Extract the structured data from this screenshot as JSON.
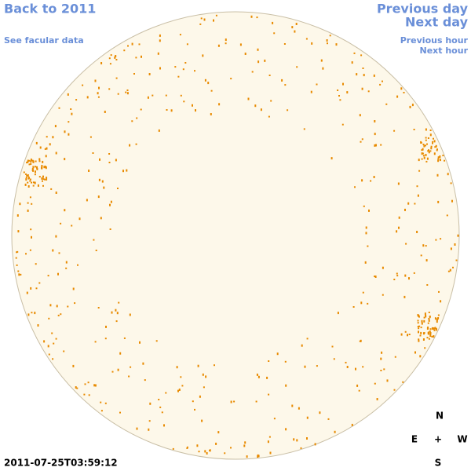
{
  "nav": {
    "back": "Back to 2011",
    "facular": "See facular data",
    "previous_day": "Previous day",
    "next_day": "Next day",
    "previous_hour": "Previous hour",
    "next_hour": "Next hour"
  },
  "timestamp": "2011-07-25T03:59:12",
  "compass": {
    "north": "N",
    "east": "E",
    "center": "+",
    "west": "W",
    "south": "S"
  }
}
